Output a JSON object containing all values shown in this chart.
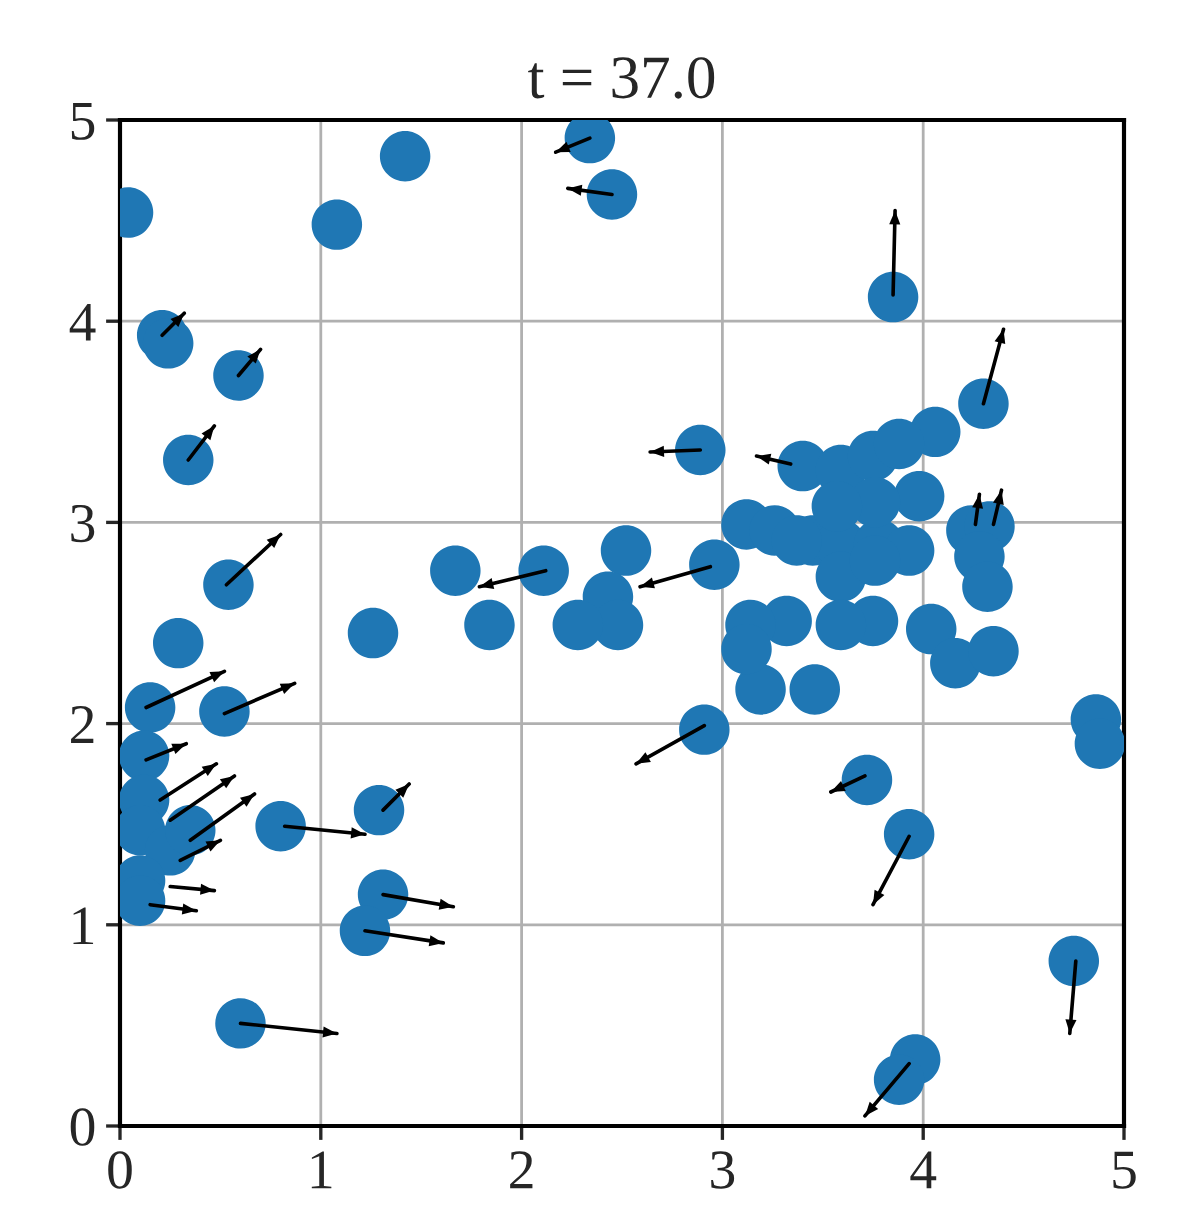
{
  "chart_data": {
    "type": "scatter",
    "title": "t = 37.0",
    "xlim": [
      0,
      5
    ],
    "ylim": [
      0,
      5
    ],
    "xticks": [
      0,
      1,
      2,
      3,
      4,
      5
    ],
    "yticks": [
      0,
      1,
      2,
      3,
      4,
      5
    ],
    "grid": true,
    "series": [
      {
        "marker": "circle",
        "color": "#1f77b4",
        "x": [
          0.04,
          1.08,
          1.42,
          2.34,
          2.45,
          0.21,
          0.24,
          0.59,
          0.34,
          3.85,
          4.3,
          2.89,
          4.06,
          3.98,
          3.4,
          3.59,
          3.75,
          3.88,
          3.12,
          3.26,
          3.45,
          3.59,
          3.78,
          3.93,
          3.76,
          3.57,
          3.37,
          3.59,
          3.76,
          4.24,
          4.33,
          4.28,
          4.32,
          4.04,
          4.16,
          4.35,
          3.75,
          3.59,
          3.46,
          3.32,
          3.14,
          3.19,
          3.12,
          2.96,
          2.91,
          2.52,
          2.43,
          2.48,
          2.28,
          2.11,
          1.84,
          1.67,
          1.26,
          0.54,
          0.29,
          0.15,
          0.52,
          0.12,
          0.12,
          0.1,
          0.25,
          0.35,
          0.1,
          0.1,
          0.8,
          1.29,
          1.31,
          1.22,
          0.6,
          3.72,
          3.93,
          3.96,
          3.88,
          4.75,
          4.86,
          4.88
        ],
        "values": [
          4.54,
          4.48,
          4.82,
          4.91,
          4.63,
          3.93,
          3.89,
          3.73,
          3.31,
          4.12,
          3.59,
          3.36,
          3.45,
          3.13,
          3.28,
          3.26,
          3.33,
          3.39,
          2.99,
          2.96,
          2.91,
          2.89,
          2.89,
          2.86,
          3.1,
          3.08,
          2.91,
          2.73,
          2.81,
          2.96,
          2.98,
          2.83,
          2.68,
          2.47,
          2.3,
          2.36,
          2.51,
          2.49,
          2.17,
          2.51,
          2.49,
          2.17,
          2.37,
          2.79,
          1.97,
          2.86,
          2.63,
          2.49,
          2.49,
          2.76,
          2.49,
          2.76,
          2.45,
          2.69,
          2.4,
          2.08,
          2.06,
          1.84,
          1.62,
          1.47,
          1.37,
          1.47,
          1.22,
          1.12,
          1.49,
          1.57,
          1.15,
          0.97,
          0.51,
          1.72,
          1.45,
          0.33,
          0.23,
          0.82,
          2.02,
          1.9
        ]
      },
      {
        "type": "line",
        "color": "#000000",
        "x": [
          0.21,
          0.32,
          null,
          0.59,
          0.7,
          null,
          0.34,
          0.47,
          null,
          3.85,
          3.86,
          null,
          4.3,
          4.4,
          null,
          2.89,
          2.64,
          null,
          2.45,
          2.23,
          null,
          2.34,
          2.17,
          null,
          0.53,
          0.8,
          null,
          0.13,
          0.52,
          null,
          0.52,
          0.87,
          null,
          0.13,
          0.33,
          null,
          0.2,
          0.48,
          null,
          0.25,
          0.57,
          null,
          0.35,
          0.67,
          null,
          0.3,
          0.5,
          null,
          0.25,
          0.47,
          null,
          0.15,
          0.38,
          null,
          0.82,
          1.22,
          null,
          1.31,
          1.44,
          null,
          1.31,
          1.66,
          null,
          1.22,
          1.61,
          null,
          0.6,
          1.08,
          null,
          2.91,
          2.57,
          null,
          3.71,
          3.54,
          null,
          3.93,
          3.75,
          null,
          4.76,
          4.73,
          null,
          3.93,
          3.71,
          null,
          2.12,
          1.79,
          null,
          2.94,
          2.59,
          null,
          3.34,
          3.17,
          null,
          4.26,
          4.28,
          null,
          4.35,
          4.39
        ],
        "values": [
          3.93,
          4.04,
          null,
          3.73,
          3.86,
          null,
          3.31,
          3.48,
          null,
          4.13,
          4.55,
          null,
          3.59,
          3.96,
          null,
          3.36,
          3.35,
          null,
          4.63,
          4.66,
          null,
          4.91,
          4.84,
          null,
          2.69,
          2.94,
          null,
          2.08,
          2.26,
          null,
          2.05,
          2.2,
          null,
          1.82,
          1.9,
          null,
          1.62,
          1.8,
          null,
          1.52,
          1.74,
          null,
          1.42,
          1.65,
          null,
          1.32,
          1.42,
          null,
          1.19,
          1.17,
          null,
          1.1,
          1.07,
          null,
          1.49,
          1.45,
          null,
          1.57,
          1.7,
          null,
          1.15,
          1.09,
          null,
          0.97,
          0.91,
          null,
          0.51,
          0.46,
          null,
          1.99,
          1.8,
          null,
          1.74,
          1.66,
          null,
          1.44,
          1.1,
          null,
          0.82,
          0.46,
          null,
          0.31,
          0.05,
          null,
          2.76,
          2.68,
          null,
          2.78,
          2.68,
          null,
          3.29,
          3.33,
          null,
          2.99,
          3.14,
          null,
          2.99,
          3.16
        ]
      }
    ]
  }
}
